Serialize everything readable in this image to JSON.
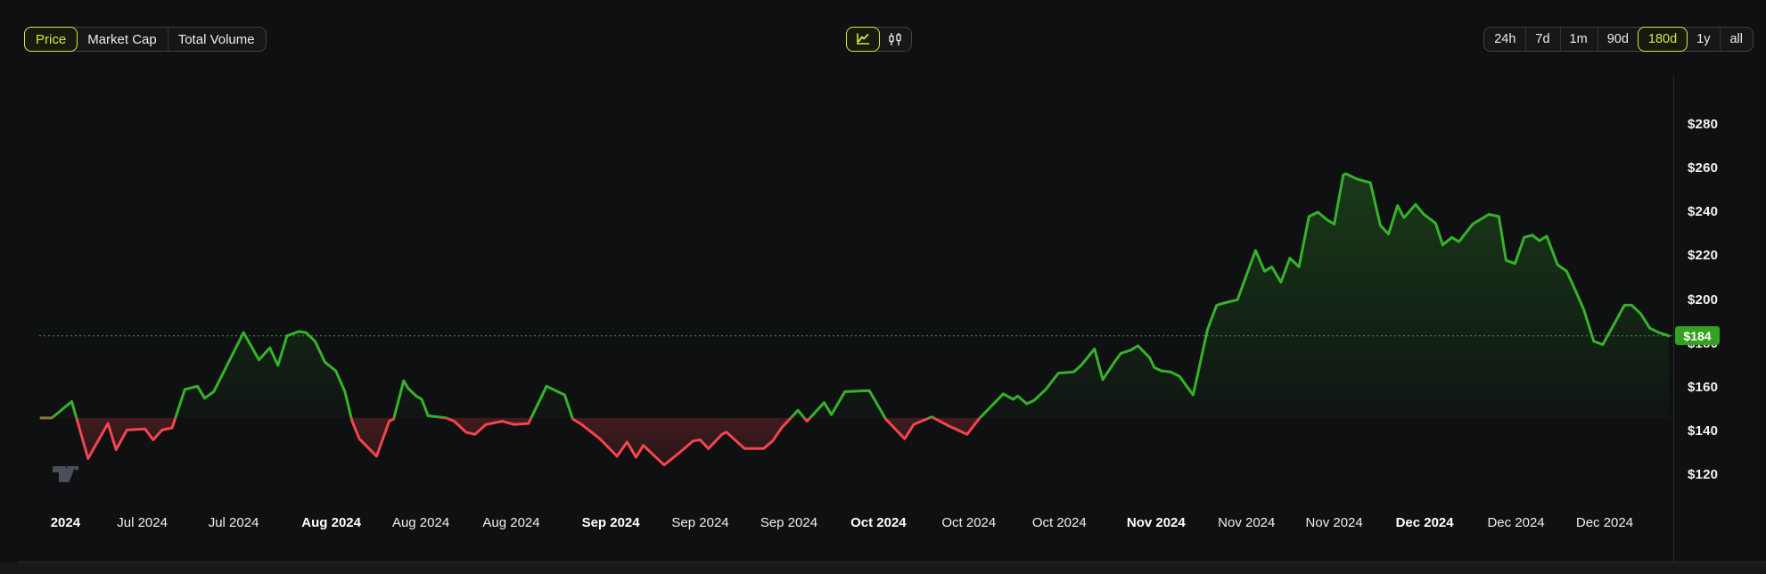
{
  "page": {
    "bg": "#0f1012",
    "accent": "#d7e64a"
  },
  "toolbar": {
    "metric_tabs": [
      {
        "label": "Price",
        "selected": true
      },
      {
        "label": "Market Cap",
        "selected": false
      },
      {
        "label": "Total Volume",
        "selected": false
      }
    ],
    "chart_type_toggle": [
      {
        "icon": "line-chart-icon",
        "selected": true
      },
      {
        "icon": "candlestick-icon",
        "selected": false
      }
    ],
    "range_buttons": [
      {
        "label": "24h",
        "selected": false
      },
      {
        "label": "7d",
        "selected": false
      },
      {
        "label": "1m",
        "selected": false
      },
      {
        "label": "90d",
        "selected": false
      },
      {
        "label": "180d",
        "selected": true
      },
      {
        "label": "1y",
        "selected": false
      },
      {
        "label": "all",
        "selected": false
      }
    ]
  },
  "watermark": {
    "name": "tradingview-logo"
  },
  "chart_data": {
    "type": "line",
    "subtype": "baseline-area",
    "unit": "USD",
    "x_domain": [
      0,
      180
    ],
    "baseline_price": 146.5,
    "current_price": 184,
    "current_price_label": "$184",
    "colors": {
      "up": "#36b22a",
      "down": "#f4444c",
      "badge": "#35a120",
      "dotted": "#3fae3f"
    },
    "y_axis": {
      "side": "right",
      "prefix": "$",
      "ticks": [
        280,
        260,
        240,
        220,
        200,
        180,
        160,
        140,
        120
      ]
    },
    "x_axis": {
      "labels": [
        {
          "text": "2024",
          "day": 2.7,
          "bold": true
        },
        {
          "text": "Jul 2024",
          "day": 11.2,
          "bold": false
        },
        {
          "text": "Jul 2024",
          "day": 21.3,
          "bold": false
        },
        {
          "text": "Aug 2024",
          "day": 32.1,
          "bold": true
        },
        {
          "text": "Aug 2024",
          "day": 42,
          "bold": false
        },
        {
          "text": "Aug 2024",
          "day": 52,
          "bold": false
        },
        {
          "text": "Sep 2024",
          "day": 63,
          "bold": true
        },
        {
          "text": "Sep 2024",
          "day": 72.9,
          "bold": false
        },
        {
          "text": "Sep 2024",
          "day": 82.7,
          "bold": false
        },
        {
          "text": "Oct 2024",
          "day": 92.6,
          "bold": true
        },
        {
          "text": "Oct 2024",
          "day": 102.6,
          "bold": false
        },
        {
          "text": "Oct 2024",
          "day": 112.6,
          "bold": false
        },
        {
          "text": "Nov 2024",
          "day": 123.3,
          "bold": true
        },
        {
          "text": "Nov 2024",
          "day": 133.3,
          "bold": false
        },
        {
          "text": "Nov 2024",
          "day": 143,
          "bold": false
        },
        {
          "text": "Dec 2024",
          "day": 153,
          "bold": true
        },
        {
          "text": "Dec 2024",
          "day": 163.1,
          "bold": false
        },
        {
          "text": "Dec 2024",
          "day": 172.9,
          "bold": false
        }
      ]
    },
    "series": [
      {
        "name": "Price",
        "points": [
          [
            0,
            146.5
          ],
          [
            1.2,
            146.5
          ],
          [
            3.4,
            154
          ],
          [
            5.2,
            128
          ],
          [
            7.4,
            144
          ],
          [
            8.3,
            132
          ],
          [
            9.5,
            141
          ],
          [
            11.5,
            141.5
          ],
          [
            12.4,
            136.5
          ],
          [
            13.4,
            141
          ],
          [
            14.5,
            142
          ],
          [
            15.9,
            159.5
          ],
          [
            17.3,
            161
          ],
          [
            18.1,
            155.5
          ],
          [
            19.1,
            158.5
          ],
          [
            22.4,
            185.5
          ],
          [
            24.1,
            173
          ],
          [
            25.3,
            178.5
          ],
          [
            26.2,
            170.5
          ],
          [
            27.2,
            184
          ],
          [
            28.5,
            186
          ],
          [
            29.3,
            185.5
          ],
          [
            30.3,
            181.5
          ],
          [
            31.4,
            172
          ],
          [
            32.6,
            168
          ],
          [
            33.6,
            158.5
          ],
          [
            34.4,
            145
          ],
          [
            35.2,
            137
          ],
          [
            37.1,
            129
          ],
          [
            38.5,
            145
          ],
          [
            39,
            146
          ],
          [
            40.1,
            163.5
          ],
          [
            40.6,
            160
          ],
          [
            41.5,
            156.5
          ],
          [
            42.1,
            155
          ],
          [
            42.8,
            147.5
          ],
          [
            44.8,
            146.5
          ],
          [
            45.7,
            145
          ],
          [
            47,
            140
          ],
          [
            48,
            139
          ],
          [
            49.2,
            143.5
          ],
          [
            51,
            145
          ],
          [
            52.3,
            143.5
          ],
          [
            53.9,
            144
          ],
          [
            55.9,
            161
          ],
          [
            57.9,
            157
          ],
          [
            58.8,
            146
          ],
          [
            59.8,
            143.5
          ],
          [
            61.8,
            137
          ],
          [
            63.7,
            129
          ],
          [
            64.8,
            135.5
          ],
          [
            65.8,
            128.5
          ],
          [
            66.6,
            134
          ],
          [
            67.1,
            132
          ],
          [
            68.9,
            125
          ],
          [
            70.7,
            131
          ],
          [
            72.1,
            136
          ],
          [
            72.9,
            136.5
          ],
          [
            73.8,
            132.5
          ],
          [
            75.3,
            139
          ],
          [
            75.8,
            140
          ],
          [
            77.8,
            132.5
          ],
          [
            79.9,
            132.5
          ],
          [
            80.9,
            136
          ],
          [
            81.9,
            142
          ],
          [
            83.7,
            150
          ],
          [
            84.7,
            145
          ],
          [
            86.6,
            153.5
          ],
          [
            87.4,
            148
          ],
          [
            88.9,
            158.5
          ],
          [
            91.6,
            159
          ],
          [
            93.4,
            146
          ],
          [
            95.5,
            137
          ],
          [
            96.5,
            143.5
          ],
          [
            98.5,
            147
          ],
          [
            100.3,
            143
          ],
          [
            102.4,
            139
          ],
          [
            103.7,
            146
          ],
          [
            106.4,
            157.5
          ],
          [
            107.5,
            155
          ],
          [
            108,
            156.5
          ],
          [
            109,
            153
          ],
          [
            109.8,
            154.5
          ],
          [
            111.1,
            159.5
          ],
          [
            112.5,
            167
          ],
          [
            114.2,
            167.5
          ],
          [
            115,
            170.5
          ],
          [
            116.5,
            178
          ],
          [
            117.4,
            164
          ],
          [
            118.7,
            172
          ],
          [
            119.4,
            176
          ],
          [
            120.5,
            177.5
          ],
          [
            121.3,
            179.5
          ],
          [
            122.6,
            174
          ],
          [
            123.1,
            169.5
          ],
          [
            123.9,
            168
          ],
          [
            124.9,
            167.5
          ],
          [
            125.9,
            165.5
          ],
          [
            126.6,
            161.5
          ],
          [
            127.4,
            157
          ],
          [
            129,
            187
          ],
          [
            130,
            198
          ],
          [
            130.8,
            199
          ],
          [
            132.3,
            200.5
          ],
          [
            134.3,
            223
          ],
          [
            135.3,
            213.5
          ],
          [
            136.1,
            215.5
          ],
          [
            137.1,
            208.5
          ],
          [
            138.1,
            219.5
          ],
          [
            139.1,
            215.5
          ],
          [
            140.2,
            238.5
          ],
          [
            141.2,
            240.5
          ],
          [
            142.2,
            237
          ],
          [
            143,
            235
          ],
          [
            144,
            257.5
          ],
          [
            144.3,
            258
          ],
          [
            145.6,
            255.5
          ],
          [
            147,
            254
          ],
          [
            148.1,
            234.5
          ],
          [
            149,
            230.5
          ],
          [
            150,
            243.5
          ],
          [
            150.7,
            238
          ],
          [
            152,
            244
          ],
          [
            152.9,
            239.5
          ],
          [
            154.2,
            235.5
          ],
          [
            155,
            225.5
          ],
          [
            156,
            229
          ],
          [
            156.8,
            227
          ],
          [
            158.3,
            235
          ],
          [
            160.1,
            239.5
          ],
          [
            161.2,
            238.5
          ],
          [
            162,
            218.5
          ],
          [
            163,
            217
          ],
          [
            164,
            229
          ],
          [
            164.9,
            230
          ],
          [
            165.7,
            227.5
          ],
          [
            166.5,
            229.5
          ],
          [
            167.7,
            216.5
          ],
          [
            168.7,
            213.5
          ],
          [
            169.7,
            204.5
          ],
          [
            170.6,
            196
          ],
          [
            171.7,
            181.5
          ],
          [
            172.7,
            180
          ],
          [
            173.9,
            189
          ],
          [
            175.1,
            198
          ],
          [
            175.9,
            198
          ],
          [
            176.9,
            194
          ],
          [
            177.9,
            187.5
          ],
          [
            178.9,
            185.5
          ],
          [
            180,
            184
          ]
        ]
      }
    ]
  }
}
